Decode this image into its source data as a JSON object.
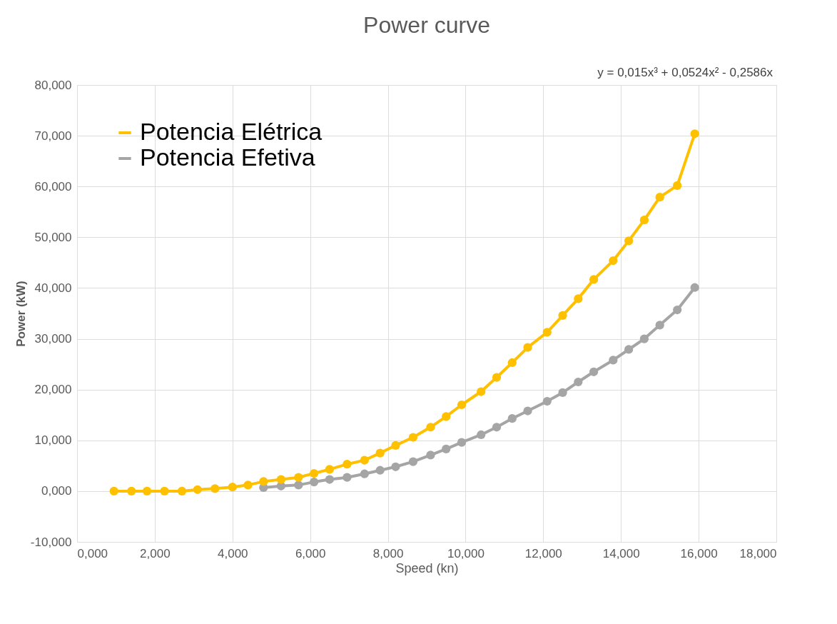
{
  "chart_data": {
    "type": "line",
    "title": "Power curve",
    "xlabel": "Speed (kn)",
    "ylabel": "Power (kW)",
    "annotations": [
      "y = 0,015x³ + 0,0524x² - 0,2586x"
    ],
    "x": [
      0.95,
      1.4,
      1.8,
      2.25,
      2.7,
      3.1,
      3.55,
      4.0,
      4.4,
      4.8,
      5.25,
      5.7,
      6.1,
      6.5,
      6.95,
      7.4,
      7.8,
      8.2,
      8.65,
      9.1,
      9.5,
      9.9,
      10.4,
      10.8,
      11.2,
      11.6,
      12.1,
      12.5,
      12.9,
      13.3,
      13.8,
      14.2,
      14.6,
      15.0,
      15.45,
      15.9
    ],
    "series": [
      {
        "name": "Potencia Elétrica",
        "color": "#ffc000",
        "values": [
          0,
          0,
          0,
          0,
          0,
          0.3,
          0.5,
          0.8,
          1.2,
          1.9,
          2.3,
          2.7,
          3.5,
          4.3,
          5.3,
          6.1,
          7.5,
          9.0,
          10.6,
          12.6,
          14.7,
          17.0,
          19.6,
          22.4,
          25.3,
          28.3,
          31.3,
          34.6,
          37.9,
          41.7,
          45.4,
          49.3,
          53.4,
          57.9,
          60.2,
          70.4
        ]
      },
      {
        "name": "Potencia Efetiva",
        "color": "#a5a5a5",
        "values": [
          null,
          null,
          null,
          null,
          null,
          null,
          null,
          null,
          null,
          0.7,
          1.0,
          1.2,
          1.8,
          2.3,
          2.7,
          3.4,
          4.1,
          4.8,
          5.8,
          7.1,
          8.3,
          9.6,
          11.1,
          12.6,
          14.3,
          15.8,
          17.7,
          19.4,
          21.5,
          23.5,
          25.8,
          27.9,
          30.0,
          32.7,
          35.7,
          40.1
        ]
      }
    ],
    "xlim": [
      0,
      18
    ],
    "xticks": [
      {
        "value": 0,
        "label": "0,000"
      },
      {
        "value": 2,
        "label": "2,000"
      },
      {
        "value": 4,
        "label": "4,000"
      },
      {
        "value": 6,
        "label": "6,000"
      },
      {
        "value": 8,
        "label": "8,000"
      },
      {
        "value": 10,
        "label": "10,000"
      },
      {
        "value": 12,
        "label": "12,000"
      },
      {
        "value": 14,
        "label": "14,000"
      },
      {
        "value": 16,
        "label": "16,000"
      },
      {
        "value": 18,
        "label": "18,000"
      }
    ],
    "ylim": [
      -10,
      80
    ],
    "yticks": [
      {
        "value": -10,
        "label": "-10,000"
      },
      {
        "value": 0,
        "label": "0,000"
      },
      {
        "value": 10,
        "label": "10,000"
      },
      {
        "value": 20,
        "label": "20,000"
      },
      {
        "value": 30,
        "label": "30,000"
      },
      {
        "value": 40,
        "label": "40,000"
      },
      {
        "value": 50,
        "label": "50,000"
      },
      {
        "value": 60,
        "label": "60,000"
      },
      {
        "value": 70,
        "label": "70,000"
      },
      {
        "value": 80,
        "label": "80,000"
      }
    ],
    "grid": true,
    "legend": "top left",
    "marker": "circle",
    "line_style": "solid"
  }
}
